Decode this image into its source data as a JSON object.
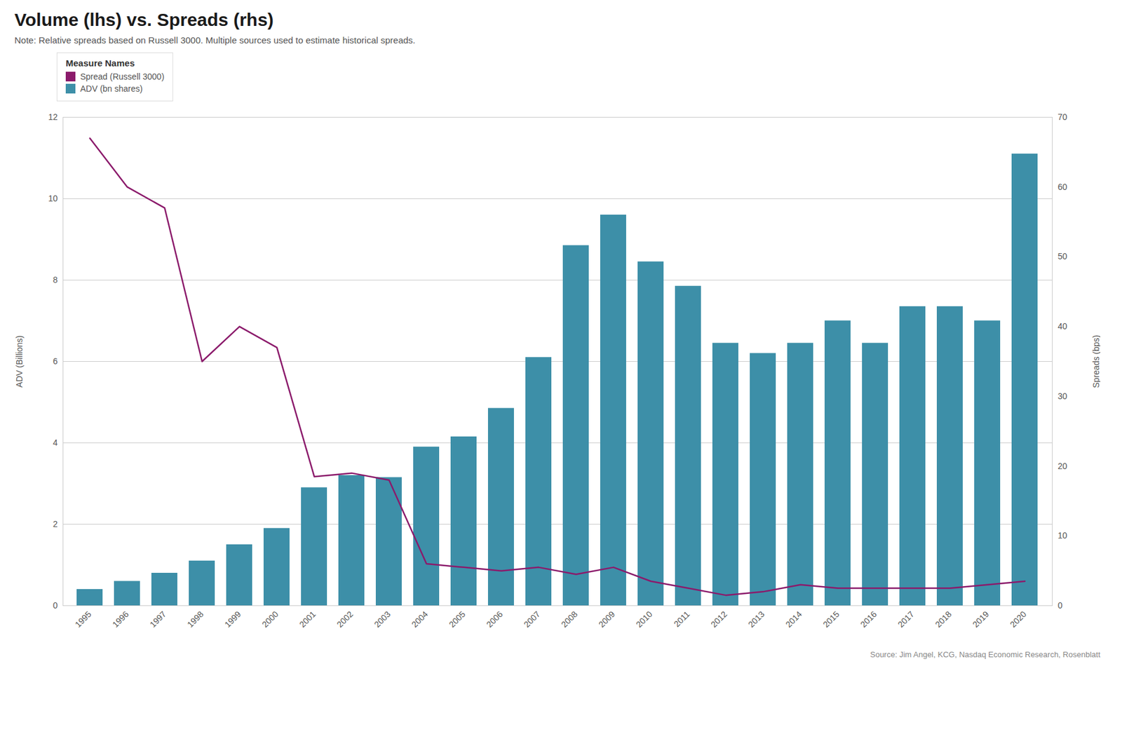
{
  "chart_data": {
    "type": "bar",
    "title": "Volume (lhs) vs. Spreads (rhs)",
    "subtitle": "Note: Relative spreads based on Russell 3000. Multiple sources used to estimate historical spreads.",
    "source": "Source: Jim Angel, KCG, Nasdaq Economic Research, Rosenblatt",
    "legend_title": "Measure Names",
    "legend": "upper left",
    "grid": true,
    "ylabel": "ADV (Billions)",
    "y2label": "Spreads (bps)",
    "x": [
      1995,
      1996,
      1997,
      1998,
      1999,
      2000,
      2001,
      2002,
      2003,
      2004,
      2005,
      2006,
      2007,
      2008,
      2009,
      2010,
      2011,
      2012,
      2013,
      2014,
      2015,
      2016,
      2017,
      2018,
      2019,
      2020
    ],
    "series": [
      {
        "name": "Spread (Russell 3000)",
        "type": "line",
        "axis": "y2",
        "color": "#8b1a6b",
        "values": [
          67.0,
          60.0,
          57.0,
          35.0,
          40.0,
          37.0,
          18.5,
          19.0,
          18.0,
          6.0,
          5.5,
          5.0,
          5.5,
          4.5,
          5.5,
          3.5,
          2.5,
          1.5,
          2.0,
          3.0,
          2.5,
          2.5,
          2.5,
          2.5,
          3.0,
          3.5
        ]
      },
      {
        "name": "ADV (bn shares)",
        "type": "bar",
        "color": "#3d8fa8",
        "values": [
          0.4,
          0.6,
          0.8,
          1.1,
          1.5,
          1.9,
          2.9,
          3.2,
          3.15,
          3.9,
          4.15,
          4.85,
          6.1,
          8.85,
          9.6,
          8.45,
          7.85,
          6.45,
          6.2,
          6.45,
          7.0,
          6.45,
          7.35,
          7.35,
          7.0,
          11.1
        ]
      }
    ],
    "ylim": [
      0,
      12
    ],
    "yticks": [
      0,
      2,
      4,
      6,
      8,
      10,
      12
    ],
    "y2lim": [
      0,
      70
    ],
    "y2ticks": [
      0,
      10,
      20,
      30,
      40,
      50,
      60,
      70
    ]
  }
}
